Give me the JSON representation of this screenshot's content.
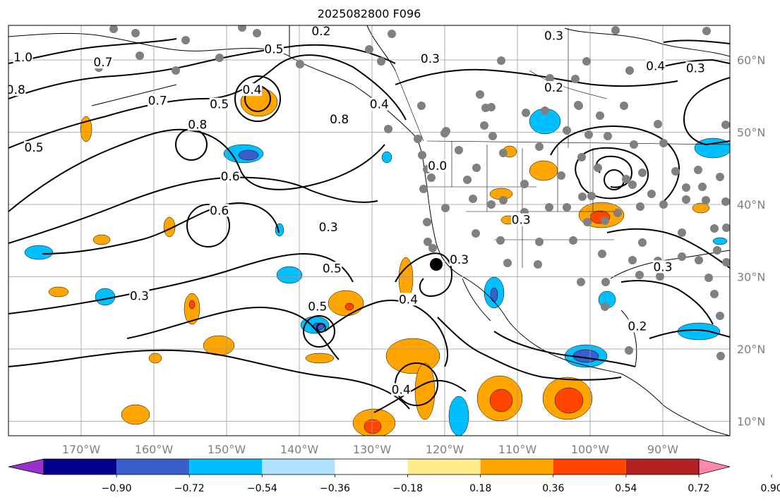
{
  "title": "2025082800 F096",
  "lon_ticks": [
    {
      "label": "170°W",
      "value": -170
    },
    {
      "label": "160°W",
      "value": -160
    },
    {
      "label": "150°W",
      "value": -150
    },
    {
      "label": "140°W",
      "value": -140
    },
    {
      "label": "130°W",
      "value": -130
    },
    {
      "label": "120°W",
      "value": -120
    },
    {
      "label": "110°W",
      "value": -110
    },
    {
      "label": "100°W",
      "value": -100
    },
    {
      "label": "90°W",
      "value": -90
    }
  ],
  "lat_ticks": [
    {
      "label": "60°N",
      "value": 60
    },
    {
      "label": "50°N",
      "value": 50
    },
    {
      "label": "40°N",
      "value": 40
    },
    {
      "label": "30°N",
      "value": 30
    },
    {
      "label": "20°N",
      "value": 20
    },
    {
      "label": "10°N",
      "value": 10
    }
  ],
  "colorbar": {
    "colors": [
      "#9932cc",
      "#00008b",
      "#3a5fcd",
      "#00bfff",
      "#b0e2ff",
      "#ffffff",
      "#ffec8b",
      "#ffa500",
      "#ff4500",
      "#b22222",
      "#ff88aa"
    ],
    "tick_labels": [
      "−0.90",
      "−0.72",
      "−0.54",
      "−0.36",
      "−0.18",
      "0.18",
      "0.36",
      "0.54",
      "0.72",
      "0.90"
    ]
  },
  "contour_labels": [
    {
      "text": "0.2",
      "lon": -137,
      "lat": 63.6
    },
    {
      "text": "0.5",
      "lon": -143.5,
      "lat": 61.1
    },
    {
      "text": "0.7",
      "lon": -167,
      "lat": 59.3
    },
    {
      "text": "1.0",
      "lon": -178,
      "lat": 60
    },
    {
      "text": "0.8",
      "lon": -179,
      "lat": 55.5
    },
    {
      "text": "0.7",
      "lon": -159.5,
      "lat": 54
    },
    {
      "text": "0.4",
      "lon": -146.5,
      "lat": 55.5
    },
    {
      "text": "0.5",
      "lon": -151,
      "lat": 53.5
    },
    {
      "text": "0.8",
      "lon": -154,
      "lat": 50.7
    },
    {
      "text": "0.8",
      "lon": -134.5,
      "lat": 51.4
    },
    {
      "text": "0.4",
      "lon": -129,
      "lat": 53.5
    },
    {
      "text": "0.3",
      "lon": -122,
      "lat": 59.8
    },
    {
      "text": "0.3",
      "lon": -105,
      "lat": 63
    },
    {
      "text": "0.2",
      "lon": -105,
      "lat": 55.8
    },
    {
      "text": "0.4",
      "lon": -91,
      "lat": 58.8
    },
    {
      "text": "0.3",
      "lon": -85.5,
      "lat": 58.5
    },
    {
      "text": "0.5",
      "lon": -176.5,
      "lat": 47.5
    },
    {
      "text": "0.6",
      "lon": -149.5,
      "lat": 43.5
    },
    {
      "text": "0.6",
      "lon": -151,
      "lat": 38.8
    },
    {
      "text": "0.3",
      "lon": -136,
      "lat": 36.5
    },
    {
      "text": "0.5",
      "lon": -135.5,
      "lat": 30.8
    },
    {
      "text": "0.5",
      "lon": -137.5,
      "lat": 25.5
    },
    {
      "text": "0.3",
      "lon": -162,
      "lat": 27
    },
    {
      "text": "0.4",
      "lon": -125,
      "lat": 26.5
    },
    {
      "text": "0.4",
      "lon": -126,
      "lat": 14
    },
    {
      "text": "0.3",
      "lon": -118,
      "lat": 32
    },
    {
      "text": "0.0",
      "lon": -121,
      "lat": 45
    },
    {
      "text": "0.3",
      "lon": -109.5,
      "lat": 37.5
    },
    {
      "text": "0.3",
      "lon": -90,
      "lat": 31
    },
    {
      "text": "0.2",
      "lon": -93.5,
      "lat": 22.8
    }
  ]
}
